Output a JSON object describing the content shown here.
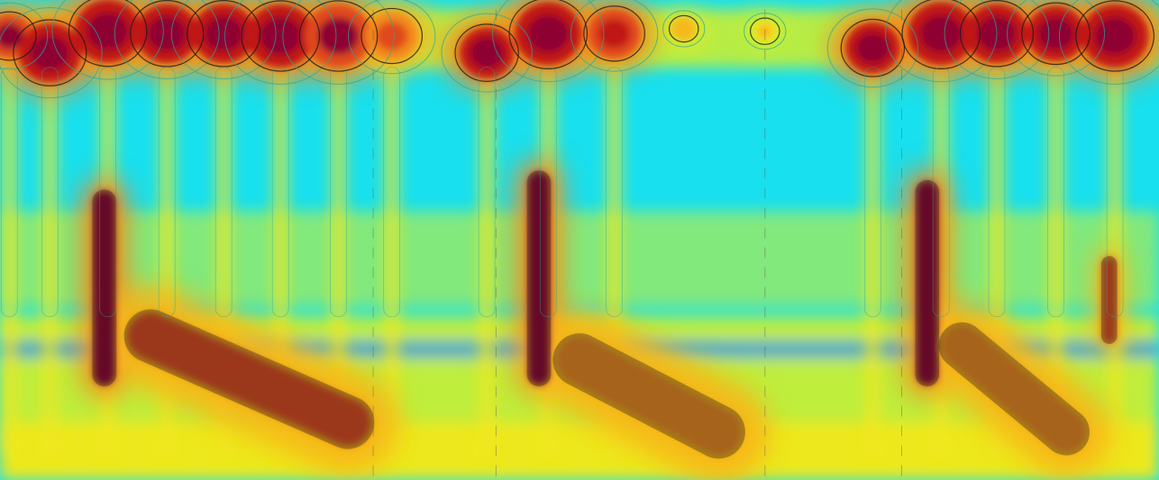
{
  "chart_data": {
    "type": "heatmap",
    "title": "",
    "xlabel": "",
    "ylabel": "",
    "x_range": [
      0,
      1
    ],
    "y_range": [
      0,
      1
    ],
    "grid": false,
    "legend": "none",
    "colormap": [
      "#00e6f0",
      "#2de0c8",
      "#7ee46a",
      "#c8ee33",
      "#f2e81c",
      "#f7b81a",
      "#f28a1e",
      "#e0481b",
      "#c01515",
      "#8e0030"
    ],
    "background_color": "#19e0ee",
    "contour_colors": {
      "outer": "#2aa89a",
      "inner": "#1a1a1a"
    },
    "blobs": [
      {
        "x": 0.008,
        "y": 0.075,
        "r": 0.022,
        "level": 0.95
      },
      {
        "x": 0.043,
        "y": 0.11,
        "r": 0.03,
        "level": 1.0
      },
      {
        "x": 0.093,
        "y": 0.065,
        "r": 0.032,
        "level": 1.0
      },
      {
        "x": 0.144,
        "y": 0.07,
        "r": 0.03,
        "level": 1.0
      },
      {
        "x": 0.193,
        "y": 0.07,
        "r": 0.03,
        "level": 1.0
      },
      {
        "x": 0.242,
        "y": 0.075,
        "r": 0.032,
        "level": 1.0
      },
      {
        "x": 0.292,
        "y": 0.075,
        "r": 0.032,
        "level": 0.95
      },
      {
        "x": 0.338,
        "y": 0.075,
        "r": 0.025,
        "level": 0.8
      },
      {
        "x": 0.42,
        "y": 0.11,
        "r": 0.026,
        "level": 1.0
      },
      {
        "x": 0.473,
        "y": 0.07,
        "r": 0.032,
        "level": 1.0
      },
      {
        "x": 0.53,
        "y": 0.07,
        "r": 0.025,
        "level": 0.9
      },
      {
        "x": 0.59,
        "y": 0.06,
        "r": 0.012,
        "level": 0.6
      },
      {
        "x": 0.66,
        "y": 0.065,
        "r": 0.012,
        "level": 0.55
      },
      {
        "x": 0.753,
        "y": 0.1,
        "r": 0.026,
        "level": 1.0
      },
      {
        "x": 0.812,
        "y": 0.07,
        "r": 0.032,
        "level": 1.0
      },
      {
        "x": 0.86,
        "y": 0.07,
        "r": 0.03,
        "level": 1.0
      },
      {
        "x": 0.911,
        "y": 0.07,
        "r": 0.028,
        "level": 1.0
      },
      {
        "x": 0.962,
        "y": 0.075,
        "r": 0.032,
        "level": 1.0
      }
    ],
    "plumes": [
      {
        "x0": 0.09,
        "y0": 0.42,
        "x1": 0.09,
        "y1": 0.78,
        "w": 0.018,
        "level": 0.95
      },
      {
        "x0": 0.13,
        "y0": 0.7,
        "x1": 0.3,
        "y1": 0.88,
        "w": 0.04,
        "level": 0.75
      },
      {
        "x0": 0.465,
        "y0": 0.38,
        "x1": 0.465,
        "y1": 0.78,
        "w": 0.018,
        "level": 0.95
      },
      {
        "x0": 0.5,
        "y0": 0.75,
        "x1": 0.62,
        "y1": 0.9,
        "w": 0.04,
        "level": 0.72
      },
      {
        "x0": 0.8,
        "y0": 0.4,
        "x1": 0.8,
        "y1": 0.78,
        "w": 0.018,
        "level": 0.95
      },
      {
        "x0": 0.83,
        "y0": 0.72,
        "x1": 0.92,
        "y1": 0.9,
        "w": 0.035,
        "level": 0.72
      },
      {
        "x0": 0.957,
        "y0": 0.55,
        "x1": 0.957,
        "y1": 0.7,
        "w": 0.012,
        "level": 0.8
      }
    ],
    "stripes": [
      0.008,
      0.043,
      0.093,
      0.144,
      0.193,
      0.242,
      0.292,
      0.338,
      0.42,
      0.473,
      0.53,
      0.753,
      0.812,
      0.86,
      0.911,
      0.962
    ],
    "separators": [
      0.322,
      0.428,
      0.66,
      0.778
    ]
  }
}
